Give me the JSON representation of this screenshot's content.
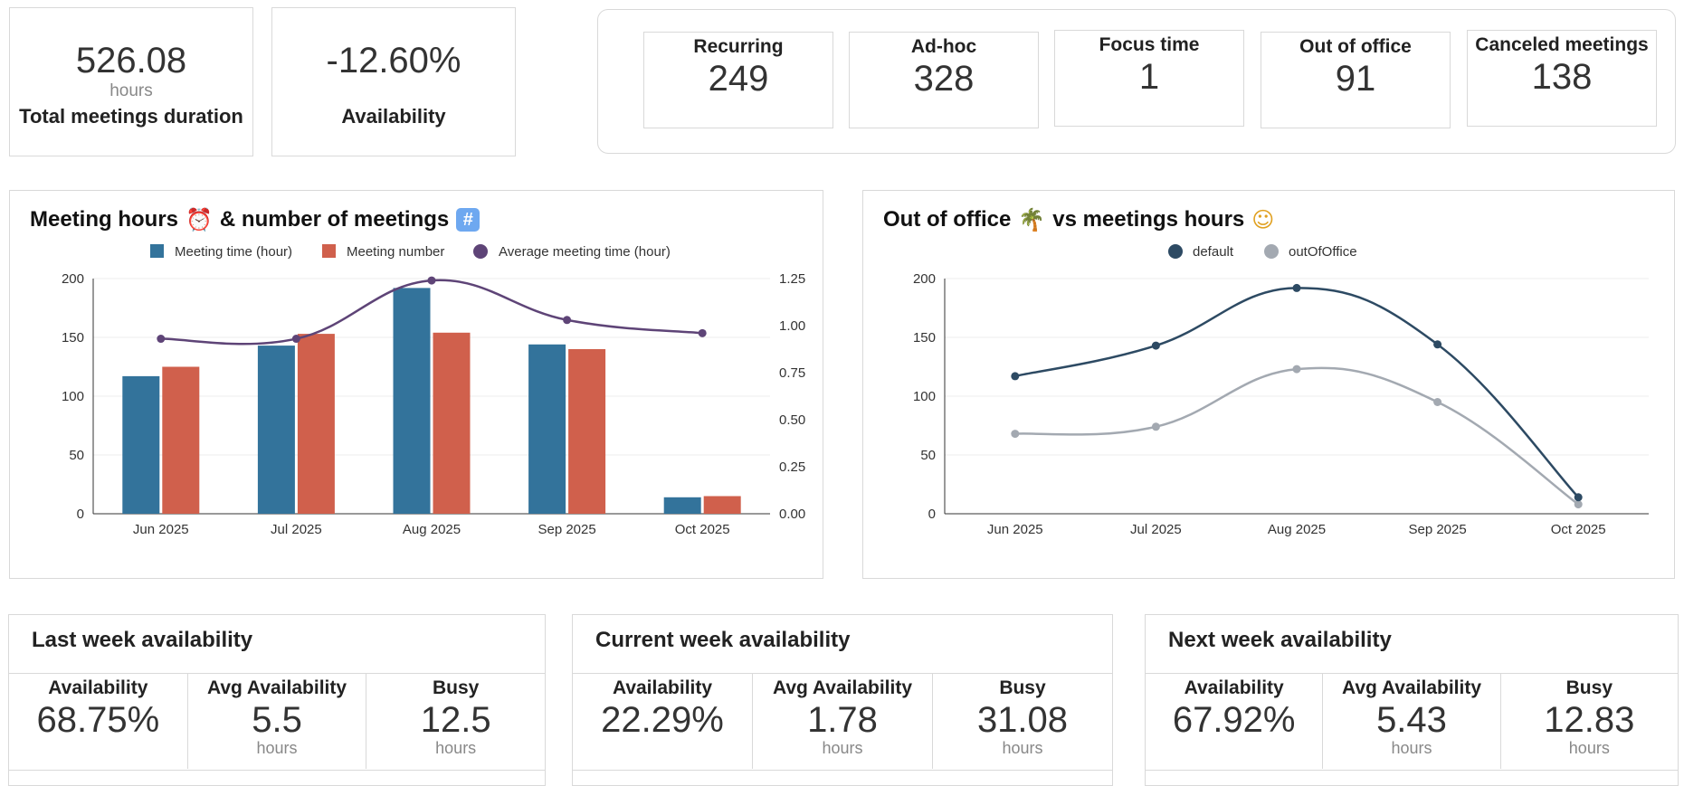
{
  "kpis": {
    "total_duration": {
      "value": "526.08",
      "unit": "hours",
      "label": "Total meetings duration"
    },
    "availability": {
      "value": "-12.60%",
      "label": "Availability"
    }
  },
  "stats": [
    {
      "title": "Recurring",
      "value": "249"
    },
    {
      "title": "Ad-hoc",
      "value": "328"
    },
    {
      "title": "Focus time",
      "value": "1"
    },
    {
      "title": "Out of office",
      "value": "91"
    },
    {
      "title": "Canceled meetings",
      "value": "138"
    }
  ],
  "chart1": {
    "title_part1": "Meeting hours",
    "title_part2": "& number of meetings",
    "icon1": "alarm-clock-icon",
    "icon2": "hash-icon"
  },
  "chart2": {
    "title_part1": "Out of office",
    "title_part2": "vs  meetings hours",
    "icon1": "palm-tree-icon",
    "icon2": "nerd-face-icon"
  },
  "chart_data": [
    {
      "type": "bar",
      "title": "Meeting hours & number of meetings",
      "categories": [
        "Jun 2025",
        "Jul 2025",
        "Aug 2025",
        "Sep 2025",
        "Oct 2025"
      ],
      "ylim": [
        0,
        200
      ],
      "yticks": [
        "0",
        "50",
        "100",
        "150",
        "200"
      ],
      "y2lim": [
        0,
        1.25
      ],
      "y2ticks": [
        "0.00",
        "0.25",
        "0.50",
        "0.75",
        "1.00",
        "1.25"
      ],
      "legend_position": "top",
      "series": [
        {
          "name": "Meeting time (hour)",
          "type": "bar",
          "color": "#33739b",
          "values": [
            117,
            143,
            192,
            144,
            14
          ]
        },
        {
          "name": "Meeting number",
          "type": "bar",
          "color": "#d0604c",
          "values": [
            125,
            153,
            154,
            140,
            15
          ]
        },
        {
          "name": "Average meeting time (hour)",
          "type": "line",
          "axis": "right",
          "color": "#5e4477",
          "values": [
            0.93,
            0.93,
            1.24,
            1.03,
            0.96
          ]
        }
      ]
    },
    {
      "type": "line",
      "title": "Out of office vs meetings hours",
      "categories": [
        "Jun 2025",
        "Jul 2025",
        "Aug 2025",
        "Sep 2025",
        "Oct 2025"
      ],
      "ylim": [
        0,
        200
      ],
      "yticks": [
        "0",
        "50",
        "100",
        "150",
        "200"
      ],
      "legend_position": "top",
      "series": [
        {
          "name": "default",
          "color": "#2d4a63",
          "values": [
            117,
            143,
            192,
            144,
            14
          ]
        },
        {
          "name": "outOfOffice",
          "color": "#a3a9b1",
          "values": [
            68,
            74,
            123,
            95,
            8
          ]
        }
      ]
    }
  ],
  "availability_panels": [
    {
      "title": "Last week availability",
      "availability": "68.75%",
      "avg": "5.5",
      "busy": "12.5"
    },
    {
      "title": "Current week availability",
      "availability": "22.29%",
      "avg": "1.78",
      "busy": "31.08"
    },
    {
      "title": "Next week availability",
      "availability": "67.92%",
      "avg": "5.43",
      "busy": "12.83"
    }
  ],
  "labels": {
    "availability": "Availability",
    "avg_availability": "Avg Availability",
    "busy": "Busy",
    "hours": "hours"
  }
}
